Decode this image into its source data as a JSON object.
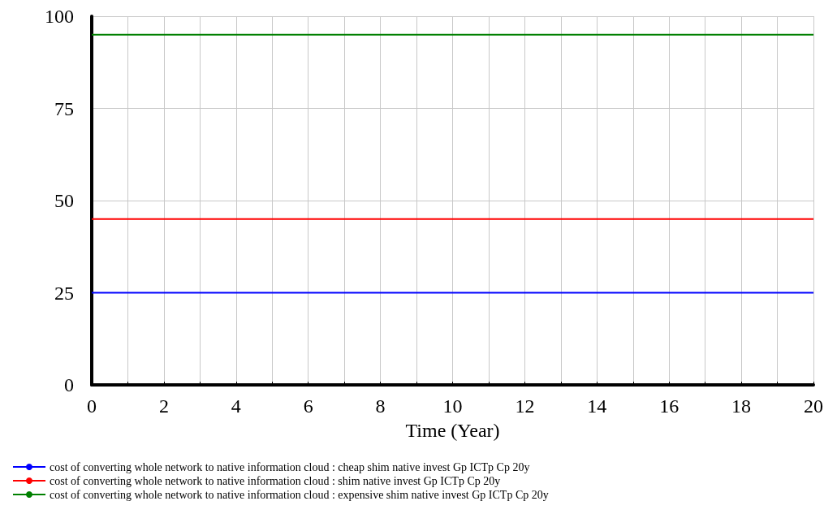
{
  "chart_data": {
    "type": "line",
    "xlabel": "Time (Year)",
    "x": [
      0,
      20
    ],
    "series": [
      {
        "name": "cost of converting whole network to native information cloud : cheap shim native invest Gp ICTp Cp 20y",
        "color": "#0000ff",
        "values": [
          25,
          25
        ]
      },
      {
        "name": "cost of converting whole network to native information cloud : shim native invest Gp ICTp Cp 20y",
        "color": "#ff0000",
        "values": [
          45,
          45
        ]
      },
      {
        "name": "cost of converting whole network to native information cloud : expensive shim native invest Gp ICTp Cp 20y",
        "color": "#008000",
        "values": [
          95,
          95
        ]
      }
    ],
    "xlim": [
      0,
      20
    ],
    "xticks": [
      0,
      {
        "value": 1,
        "label": null
      },
      2,
      {
        "value": 3,
        "label": null
      },
      4,
      {
        "value": 5,
        "label": null
      },
      6,
      {
        "value": 7,
        "label": null
      },
      8,
      {
        "value": 9,
        "label": null
      },
      10,
      {
        "value": 11,
        "label": null
      },
      12,
      {
        "value": 13,
        "label": null
      },
      14,
      {
        "value": 15,
        "label": null
      },
      16,
      {
        "value": 17,
        "label": null
      },
      18,
      {
        "value": 19,
        "label": null
      },
      20
    ],
    "ylim": [
      0,
      100
    ],
    "yticks": [
      0,
      25,
      50,
      75,
      100
    ],
    "grid": true,
    "legend": "bottom",
    "marker": "none",
    "line_style": "solid"
  }
}
